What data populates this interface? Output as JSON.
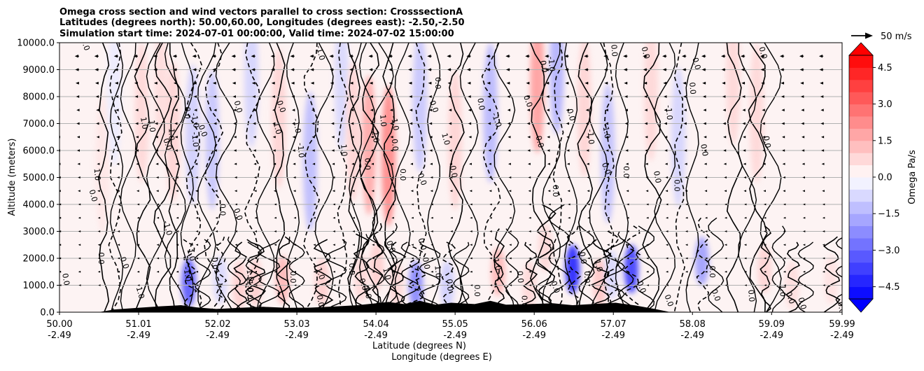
{
  "chart_data": {
    "type": "heatmap",
    "title_lines": [
      "Omega cross section and wind vectors parallel to cross section: CrosssectionA",
      "Latitudes (degrees north): 50.00,60.00, Longitudes (degrees east): -2.50,-2.50",
      "Simulation start time: 2024-07-01 00:00:00, Valid time: 2024-07-02 15:00:00"
    ],
    "ylabel": "Altitude (meters)",
    "xlabel_line1": "Latitude (degrees N)",
    "xlabel_line2": "Longitude (degrees E)",
    "xlim": [
      50.0,
      59.99
    ],
    "ylim": [
      0,
      10000
    ],
    "grid": "horizontal",
    "x_ticks": [
      {
        "lat": "50.00",
        "lon": "-2.49",
        "value": 50.0
      },
      {
        "lat": "51.01",
        "lon": "-2.49",
        "value": 51.01
      },
      {
        "lat": "52.02",
        "lon": "-2.49",
        "value": 52.02
      },
      {
        "lat": "53.03",
        "lon": "-2.49",
        "value": 53.03
      },
      {
        "lat": "54.04",
        "lon": "-2.49",
        "value": 54.04
      },
      {
        "lat": "55.05",
        "lon": "-2.49",
        "value": 55.05
      },
      {
        "lat": "56.06",
        "lon": "-2.49",
        "value": 56.06
      },
      {
        "lat": "57.07",
        "lon": "-2.49",
        "value": 57.07
      },
      {
        "lat": "58.08",
        "lon": "-2.49",
        "value": 58.08
      },
      {
        "lat": "59.09",
        "lon": "-2.49",
        "value": 59.09
      },
      {
        "lat": "59.99",
        "lon": "-2.49",
        "value": 59.99
      }
    ],
    "y_ticks": [
      {
        "label": "0.0",
        "value": 0
      },
      {
        "label": "1000.0",
        "value": 1000
      },
      {
        "label": "2000.0",
        "value": 2000
      },
      {
        "label": "3000.0",
        "value": 3000
      },
      {
        "label": "4000.0",
        "value": 4000
      },
      {
        "label": "5000.0",
        "value": 5000
      },
      {
        "label": "6000.0",
        "value": 6000
      },
      {
        "label": "7000.0",
        "value": 7000
      },
      {
        "label": "8000.0",
        "value": 8000
      },
      {
        "label": "9000.0",
        "value": 9000
      },
      {
        "label": "10000.0",
        "value": 10000
      }
    ],
    "colorbar": {
      "label": "Omega Pa/s",
      "range": [
        -5.0,
        5.0
      ],
      "extend": "both",
      "ticks": [
        {
          "label": "4.5",
          "value": 4.5
        },
        {
          "label": "3.0",
          "value": 3.0
        },
        {
          "label": "1.5",
          "value": 1.5
        },
        {
          "label": "0.0",
          "value": 0.0
        },
        {
          "label": "−1.5",
          "value": -1.5
        },
        {
          "label": "−3.0",
          "value": -3.0
        },
        {
          "label": "−4.5",
          "value": -4.5
        }
      ],
      "colors": {
        "negative_max": "#0000ff",
        "positive_max": "#ff0000",
        "neutral": "#ffffff"
      }
    },
    "vector_key": {
      "label": "50 m/s",
      "speed": 50
    },
    "contour_levels": [
      -1.0,
      0.0,
      1.0,
      2.0
    ],
    "omega_regions": [
      {
        "lat": 50.55,
        "alt": 5500,
        "value": 0.5
      },
      {
        "lat": 50.7,
        "alt": 8000,
        "value": -0.4
      },
      {
        "lat": 51.05,
        "alt": 7400,
        "value": 0.8
      },
      {
        "lat": 51.3,
        "alt": 8200,
        "value": 0.7
      },
      {
        "lat": 51.45,
        "alt": 6700,
        "value": 0.9
      },
      {
        "lat": 51.65,
        "alt": 1100,
        "value": -3.5
      },
      {
        "lat": 51.7,
        "alt": 6600,
        "value": -1.0
      },
      {
        "lat": 51.95,
        "alt": 6400,
        "value": -1.2
      },
      {
        "lat": 52.05,
        "alt": 1200,
        "value": -0.8
      },
      {
        "lat": 52.3,
        "alt": 1000,
        "value": 1.0
      },
      {
        "lat": 52.45,
        "alt": 8700,
        "value": -0.9
      },
      {
        "lat": 52.5,
        "alt": 1100,
        "value": 1.0
      },
      {
        "lat": 52.8,
        "alt": 7200,
        "value": 0.9
      },
      {
        "lat": 52.85,
        "alt": 1200,
        "value": 1.5
      },
      {
        "lat": 53.2,
        "alt": 5600,
        "value": -1.4
      },
      {
        "lat": 53.35,
        "alt": 1100,
        "value": 1.0
      },
      {
        "lat": 53.6,
        "alt": 8600,
        "value": -0.8
      },
      {
        "lat": 53.75,
        "alt": 6700,
        "value": 0.9
      },
      {
        "lat": 53.85,
        "alt": 1300,
        "value": 0.8
      },
      {
        "lat": 53.95,
        "alt": 6200,
        "value": 1.8
      },
      {
        "lat": 54.05,
        "alt": 1700,
        "value": 1.0
      },
      {
        "lat": 54.2,
        "alt": 5800,
        "value": 2.5
      },
      {
        "lat": 54.3,
        "alt": 1000,
        "value": 0.8
      },
      {
        "lat": 54.55,
        "alt": 1000,
        "value": -2.5
      },
      {
        "lat": 54.6,
        "alt": 7800,
        "value": -1.2
      },
      {
        "lat": 54.95,
        "alt": 1000,
        "value": -1.0
      },
      {
        "lat": 55.05,
        "alt": 6400,
        "value": 0.9
      },
      {
        "lat": 55.5,
        "alt": 7400,
        "value": -1.5
      },
      {
        "lat": 55.6,
        "alt": 1500,
        "value": 1.5
      },
      {
        "lat": 56.0,
        "alt": 1000,
        "value": 0.8
      },
      {
        "lat": 56.1,
        "alt": 8500,
        "value": 2.0
      },
      {
        "lat": 56.2,
        "alt": 2400,
        "value": 0.8
      },
      {
        "lat": 56.35,
        "alt": 9200,
        "value": -1.6
      },
      {
        "lat": 56.55,
        "alt": 1600,
        "value": -4.5
      },
      {
        "lat": 56.7,
        "alt": 7600,
        "value": 0.9
      },
      {
        "lat": 56.9,
        "alt": 1100,
        "value": 1.2
      },
      {
        "lat": 57.0,
        "alt": 5900,
        "value": -1.3
      },
      {
        "lat": 57.05,
        "alt": 1400,
        "value": -0.8
      },
      {
        "lat": 57.3,
        "alt": 1600,
        "value": -4.0
      },
      {
        "lat": 57.55,
        "alt": 8200,
        "value": 0.8
      },
      {
        "lat": 57.9,
        "alt": 6500,
        "value": -0.9
      },
      {
        "lat": 58.2,
        "alt": 1900,
        "value": -2.0
      },
      {
        "lat": 58.6,
        "alt": 8800,
        "value": 0.8
      },
      {
        "lat": 58.9,
        "alt": 7400,
        "value": 0.8
      },
      {
        "lat": 59.0,
        "alt": 1600,
        "value": 0.9
      },
      {
        "lat": 59.35,
        "alt": 1000,
        "value": 0.7
      },
      {
        "lat": 59.85,
        "alt": 1200,
        "value": 0.6
      }
    ],
    "terrain": [
      {
        "lat": 50.0,
        "alt": 0
      },
      {
        "lat": 50.5,
        "alt": 0
      },
      {
        "lat": 50.7,
        "alt": 100
      },
      {
        "lat": 51.0,
        "alt": 160
      },
      {
        "lat": 51.3,
        "alt": 220
      },
      {
        "lat": 51.55,
        "alt": 260
      },
      {
        "lat": 51.75,
        "alt": 180
      },
      {
        "lat": 52.0,
        "alt": 120
      },
      {
        "lat": 52.3,
        "alt": 160
      },
      {
        "lat": 52.6,
        "alt": 200
      },
      {
        "lat": 52.9,
        "alt": 160
      },
      {
        "lat": 53.2,
        "alt": 170
      },
      {
        "lat": 53.5,
        "alt": 210
      },
      {
        "lat": 53.8,
        "alt": 260
      },
      {
        "lat": 54.0,
        "alt": 320
      },
      {
        "lat": 54.2,
        "alt": 380
      },
      {
        "lat": 54.4,
        "alt": 300
      },
      {
        "lat": 54.6,
        "alt": 420
      },
      {
        "lat": 54.8,
        "alt": 280
      },
      {
        "lat": 55.0,
        "alt": 350
      },
      {
        "lat": 55.3,
        "alt": 300
      },
      {
        "lat": 55.5,
        "alt": 420
      },
      {
        "lat": 55.7,
        "alt": 280
      },
      {
        "lat": 56.0,
        "alt": 300
      },
      {
        "lat": 56.3,
        "alt": 330
      },
      {
        "lat": 56.55,
        "alt": 260
      },
      {
        "lat": 56.8,
        "alt": 300
      },
      {
        "lat": 57.1,
        "alt": 350
      },
      {
        "lat": 57.35,
        "alt": 250
      },
      {
        "lat": 57.6,
        "alt": 120
      },
      {
        "lat": 57.8,
        "alt": 0
      },
      {
        "lat": 59.99,
        "alt": 0
      }
    ],
    "wind_rows": [
      {
        "alt": 9500,
        "u": -10
      },
      {
        "alt": 9000,
        "u": -9
      },
      {
        "alt": 8500,
        "u": -8
      },
      {
        "alt": 8000,
        "u": -7
      },
      {
        "alt": 7500,
        "u": -6
      },
      {
        "alt": 7000,
        "u": -6
      },
      {
        "alt": 6500,
        "u": -5
      },
      {
        "alt": 6000,
        "u": -5
      },
      {
        "alt": 5500,
        "u": -4
      },
      {
        "alt": 5000,
        "u": -3
      },
      {
        "alt": 4500,
        "u": -3
      },
      {
        "alt": 4000,
        "u": -2
      },
      {
        "alt": 3500,
        "u": -2
      },
      {
        "alt": 3000,
        "u": -2
      },
      {
        "alt": 2500,
        "u": -2
      },
      {
        "alt": 2000,
        "u": -2
      },
      {
        "alt": 1500,
        "u": -2
      },
      {
        "alt": 1000,
        "u": -1
      }
    ],
    "contour_labels": [
      {
        "text": "0.0",
        "lat": 50.3,
        "alt": 9900
      },
      {
        "text": "0.0",
        "lat": 50.4,
        "alt": 4300
      },
      {
        "text": "0.0",
        "lat": 50.05,
        "alt": 1200
      },
      {
        "text": "1.0",
        "lat": 50.45,
        "alt": 5100
      },
      {
        "text": "0.0",
        "lat": 50.5,
        "alt": 2000
      },
      {
        "text": "0.0",
        "lat": 50.8,
        "alt": 1800
      },
      {
        "text": "1.0",
        "lat": 51.0,
        "alt": 700
      },
      {
        "text": "1.0",
        "lat": 51.05,
        "alt": 7000
      },
      {
        "text": "1.0",
        "lat": 51.15,
        "alt": 6900
      },
      {
        "text": "1.0",
        "lat": 51.4,
        "alt": 6600
      },
      {
        "text": "0.0",
        "lat": 51.35,
        "alt": 6200
      },
      {
        "text": "-1.0",
        "lat": 51.35,
        "alt": 3100
      },
      {
        "text": "-1.0",
        "lat": 51.7,
        "alt": 7100
      },
      {
        "text": "-1.0",
        "lat": 51.7,
        "alt": 6400
      },
      {
        "text": "0.0",
        "lat": 51.6,
        "alt": 7400
      },
      {
        "text": "0.0",
        "lat": 51.8,
        "alt": 6700
      },
      {
        "text": "1.0",
        "lat": 51.65,
        "alt": 2100
      },
      {
        "text": "-1.0",
        "lat": 51.6,
        "alt": 1400
      },
      {
        "text": "0.0",
        "lat": 51.95,
        "alt": 1800
      },
      {
        "text": "0.0",
        "lat": 52.05,
        "alt": 3800
      },
      {
        "text": "0.0",
        "lat": 52.25,
        "alt": 3600
      },
      {
        "text": "0.0",
        "lat": 52.25,
        "alt": 7600
      },
      {
        "text": "-1.0",
        "lat": 52.4,
        "alt": 1400
      },
      {
        "text": "-1.0",
        "lat": 52.4,
        "alt": 1000
      },
      {
        "text": "0.0",
        "lat": 52.4,
        "alt": 700
      },
      {
        "text": "0.0",
        "lat": 52.8,
        "alt": 7600
      },
      {
        "text": "1.0",
        "lat": 52.75,
        "alt": 6800
      },
      {
        "text": "-1.0",
        "lat": 53.0,
        "alt": 6900
      },
      {
        "text": "-1.0",
        "lat": 53.05,
        "alt": 6000
      },
      {
        "text": "0.0",
        "lat": 52.95,
        "alt": 1300
      },
      {
        "text": "1.0",
        "lat": 53.3,
        "alt": 1400
      },
      {
        "text": "-1.0",
        "lat": 53.3,
        "alt": 9600
      },
      {
        "text": "0.0",
        "lat": 53.3,
        "alt": 400
      },
      {
        "text": "1.0",
        "lat": 53.6,
        "alt": 6000
      },
      {
        "text": "0.0",
        "lat": 53.7,
        "alt": 1600
      },
      {
        "text": "0.0",
        "lat": 53.85,
        "alt": 1000
      },
      {
        "text": "1.0",
        "lat": 53.9,
        "alt": 700
      },
      {
        "text": "2.0",
        "lat": 54.0,
        "alt": 6500
      },
      {
        "text": "1.0",
        "lat": 54.1,
        "alt": 7100
      },
      {
        "text": "0.0",
        "lat": 53.9,
        "alt": 5500
      },
      {
        "text": "0.0",
        "lat": 54.2,
        "alt": 2400
      },
      {
        "text": "1.0",
        "lat": 54.15,
        "alt": 1400
      },
      {
        "text": "-1.0",
        "lat": 54.25,
        "alt": 7000
      },
      {
        "text": "0.0",
        "lat": 54.25,
        "alt": 6200
      },
      {
        "text": "0.0",
        "lat": 54.35,
        "alt": 5100
      },
      {
        "text": "0.0",
        "lat": 54.6,
        "alt": 4900
      },
      {
        "text": "0.0",
        "lat": 54.6,
        "alt": 2500
      },
      {
        "text": "0.0",
        "lat": 54.65,
        "alt": 1800
      },
      {
        "text": "1.0",
        "lat": 54.8,
        "alt": 1500
      },
      {
        "text": "0.0",
        "lat": 54.8,
        "alt": 8500
      },
      {
        "text": "0.0",
        "lat": 54.75,
        "alt": 7600
      },
      {
        "text": "1.0",
        "lat": 54.9,
        "alt": 6400
      },
      {
        "text": "0.0",
        "lat": 55.0,
        "alt": 5200
      },
      {
        "text": "0.0",
        "lat": 54.95,
        "alt": 1000
      },
      {
        "text": "0.0",
        "lat": 55.3,
        "alt": 800
      },
      {
        "text": "-1.0",
        "lat": 55.55,
        "alt": 7100
      },
      {
        "text": "-1.0",
        "lat": 55.55,
        "alt": 1800
      },
      {
        "text": "0.0",
        "lat": 55.35,
        "alt": 7700
      },
      {
        "text": "0.0",
        "lat": 55.85,
        "alt": 1300
      },
      {
        "text": "0.0",
        "lat": 55.9,
        "alt": 400
      },
      {
        "text": "0.0",
        "lat": 55.95,
        "alt": 7800
      },
      {
        "text": "0.0",
        "lat": 56.1,
        "alt": 6300
      },
      {
        "text": "0.0",
        "lat": 56.15,
        "alt": 9100
      },
      {
        "text": "-1.0",
        "lat": 56.25,
        "alt": 9200
      },
      {
        "text": "0.0",
        "lat": 56.3,
        "alt": 4500
      },
      {
        "text": "0.0",
        "lat": 56.3,
        "alt": 900
      },
      {
        "text": "0.0",
        "lat": 56.5,
        "alt": 7300
      },
      {
        "text": "0.0",
        "lat": 56.65,
        "alt": 2000
      },
      {
        "text": "-1.0",
        "lat": 56.75,
        "alt": 6500
      },
      {
        "text": "0.0",
        "lat": 56.7,
        "alt": 1300
      },
      {
        "text": "0.0",
        "lat": 56.95,
        "alt": 5300
      },
      {
        "text": "1.0",
        "lat": 56.85,
        "alt": 1700
      },
      {
        "text": "-1.0",
        "lat": 56.95,
        "alt": 6700
      },
      {
        "text": "0.0",
        "lat": 57.05,
        "alt": 9700
      },
      {
        "text": "0.0",
        "lat": 57.2,
        "alt": 5200
      },
      {
        "text": "0.0",
        "lat": 57.4,
        "alt": 900
      },
      {
        "text": "0.0",
        "lat": 57.45,
        "alt": 9600
      },
      {
        "text": "0.0",
        "lat": 57.6,
        "alt": 5000
      },
      {
        "text": "-1.0",
        "lat": 57.75,
        "alt": 7400
      },
      {
        "text": "0.0",
        "lat": 57.85,
        "alt": 4700
      },
      {
        "text": "0.0",
        "lat": 57.75,
        "alt": 400
      },
      {
        "text": "0.0",
        "lat": 58.1,
        "alt": 9200
      },
      {
        "text": "0.0",
        "lat": 58.2,
        "alt": 6000
      },
      {
        "text": "0.0",
        "lat": 58.05,
        "alt": 8300
      },
      {
        "text": "0.0",
        "lat": 58.3,
        "alt": 1500
      },
      {
        "text": "0.0",
        "lat": 58.35,
        "alt": 600
      },
      {
        "text": "0.0",
        "lat": 58.95,
        "alt": 9600
      },
      {
        "text": "0.0",
        "lat": 59.0,
        "alt": 6300
      },
      {
        "text": "0.0",
        "lat": 58.8,
        "alt": 600
      },
      {
        "text": "1.0",
        "lat": 59.2,
        "alt": 800
      },
      {
        "text": "0.0",
        "lat": 59.3,
        "alt": 500
      },
      {
        "text": "0.0",
        "lat": 59.45,
        "alt": 300
      },
      {
        "text": "0.0",
        "lat": 59.95,
        "alt": 150
      }
    ]
  }
}
